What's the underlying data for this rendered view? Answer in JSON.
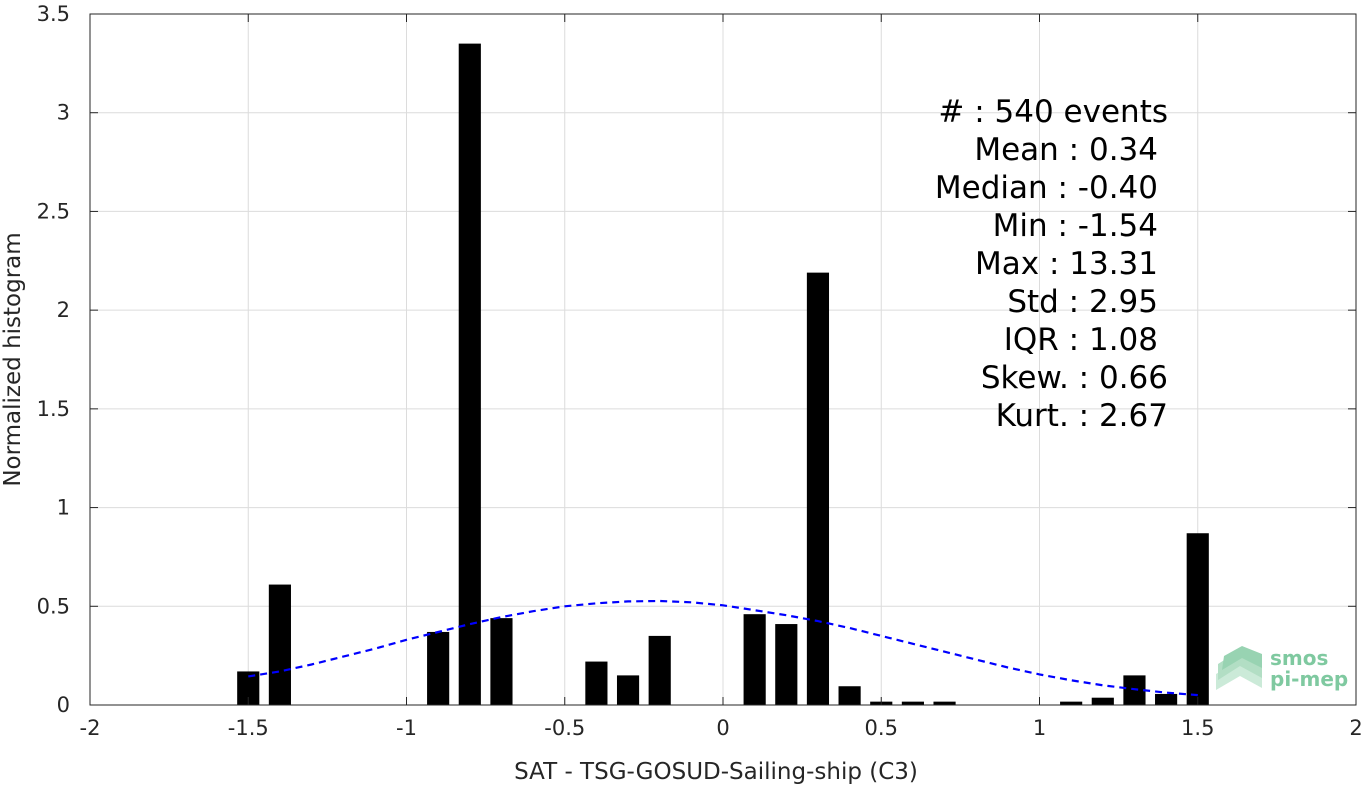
{
  "chart_data": {
    "type": "bar",
    "xlabel": "SAT - TSG-GOSUD-Sailing-ship (C3)",
    "ylabel": "Normalized histogram",
    "xlim": [
      -2,
      2
    ],
    "ylim": [
      0,
      3.5
    ],
    "xticks": [
      -2,
      -1.5,
      -1,
      -0.5,
      0,
      0.5,
      1,
      1.5,
      2
    ],
    "xtick_labels": [
      "-2",
      "-1.5",
      "-1",
      "-0.5",
      "0",
      "0.5",
      "1",
      "1.5",
      "2"
    ],
    "yticks": [
      0,
      0.5,
      1,
      1.5,
      2,
      2.5,
      3,
      3.5
    ],
    "ytick_labels": [
      "0",
      "0.5",
      "1",
      "1.5",
      "2",
      "2.5",
      "3",
      "3.5"
    ],
    "grid": true,
    "bar_color": "#000000",
    "bar_width": 0.07,
    "bars": [
      {
        "x": -1.5,
        "value": 0.17
      },
      {
        "x": -1.4,
        "value": 0.61
      },
      {
        "x": -0.9,
        "value": 0.37
      },
      {
        "x": -0.8,
        "value": 3.35
      },
      {
        "x": -0.7,
        "value": 0.44
      },
      {
        "x": -0.4,
        "value": 0.22
      },
      {
        "x": -0.3,
        "value": 0.15
      },
      {
        "x": -0.2,
        "value": 0.35
      },
      {
        "x": 0.1,
        "value": 0.46
      },
      {
        "x": 0.2,
        "value": 0.41
      },
      {
        "x": 0.3,
        "value": 2.19
      },
      {
        "x": 0.4,
        "value": 0.095
      },
      {
        "x": 0.5,
        "value": 0.017
      },
      {
        "x": 0.6,
        "value": 0.017
      },
      {
        "x": 0.7,
        "value": 0.017
      },
      {
        "x": 1.1,
        "value": 0.017
      },
      {
        "x": 1.2,
        "value": 0.037
      },
      {
        "x": 1.3,
        "value": 0.15
      },
      {
        "x": 1.4,
        "value": 0.056
      },
      {
        "x": 1.5,
        "value": 0.87
      }
    ],
    "fit_curve": {
      "style": "dashed",
      "color": "#0000ff",
      "points": [
        [
          -1.5,
          0.145
        ],
        [
          -1.4,
          0.17
        ],
        [
          -1.3,
          0.205
        ],
        [
          -1.2,
          0.245
        ],
        [
          -1.1,
          0.285
        ],
        [
          -1.0,
          0.33
        ],
        [
          -0.9,
          0.37
        ],
        [
          -0.8,
          0.41
        ],
        [
          -0.7,
          0.445
        ],
        [
          -0.6,
          0.475
        ],
        [
          -0.5,
          0.5
        ],
        [
          -0.4,
          0.515
        ],
        [
          -0.3,
          0.525
        ],
        [
          -0.2,
          0.527
        ],
        [
          -0.1,
          0.52
        ],
        [
          0.0,
          0.505
        ],
        [
          0.1,
          0.48
        ],
        [
          0.2,
          0.455
        ],
        [
          0.3,
          0.425
        ],
        [
          0.4,
          0.39
        ],
        [
          0.5,
          0.35
        ],
        [
          0.6,
          0.31
        ],
        [
          0.7,
          0.27
        ],
        [
          0.8,
          0.23
        ],
        [
          0.9,
          0.19
        ],
        [
          1.0,
          0.155
        ],
        [
          1.1,
          0.125
        ],
        [
          1.2,
          0.1
        ],
        [
          1.3,
          0.08
        ],
        [
          1.4,
          0.063
        ],
        [
          1.5,
          0.05
        ]
      ]
    },
    "annotations": [
      "#  : 540 events",
      "Mean : 0.34",
      "Median : -0.40",
      "Min : -1.54",
      "Max : 13.31",
      "Std : 2.95",
      "IQR : 1.08",
      "Skew. : 0.66",
      "Kurt. : 2.67"
    ]
  },
  "logo": {
    "line1": "smos",
    "line2": "pi-mep",
    "color": "#7fc9a0"
  }
}
